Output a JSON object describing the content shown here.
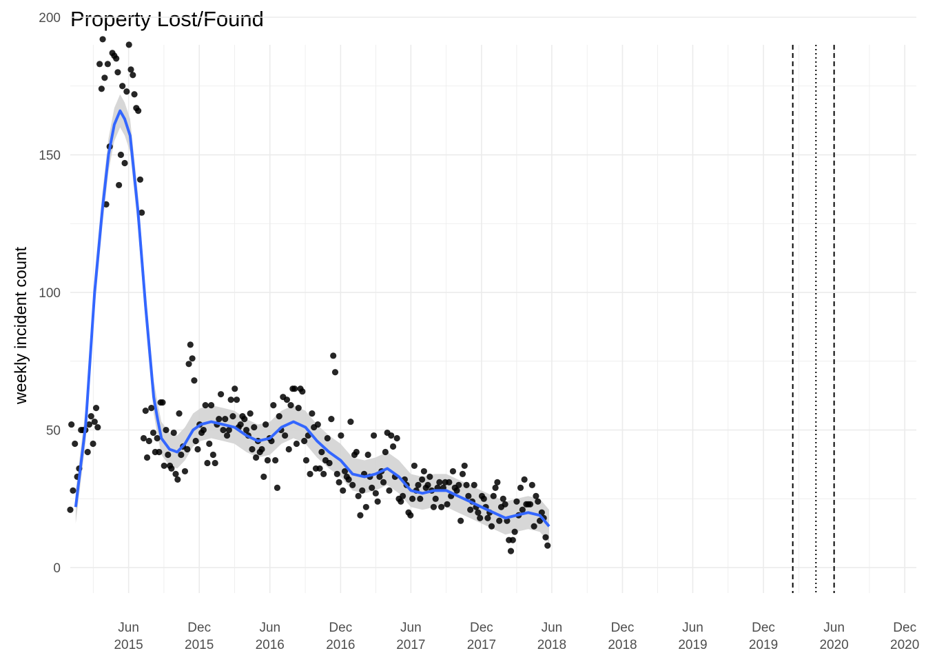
{
  "chart_data": {
    "type": "scatter",
    "title": "Property Lost/Found",
    "xlabel": "",
    "ylabel": "weekly incident count",
    "xlim": [
      "2015-01-01",
      "2020-12-31"
    ],
    "ylim": [
      -8,
      200
    ],
    "y_ticks": [
      0,
      50,
      100,
      150,
      200
    ],
    "x_ticks": [
      {
        "date": "2015-06-01",
        "line1": "Jun",
        "line2": "2015"
      },
      {
        "date": "2015-12-01",
        "line1": "Dec",
        "line2": "2015"
      },
      {
        "date": "2016-06-01",
        "line1": "Jun",
        "line2": "2016"
      },
      {
        "date": "2016-12-01",
        "line1": "Dec",
        "line2": "2016"
      },
      {
        "date": "2017-06-01",
        "line1": "Jun",
        "line2": "2017"
      },
      {
        "date": "2017-12-01",
        "line1": "Dec",
        "line2": "2017"
      },
      {
        "date": "2018-06-01",
        "line1": "Jun",
        "line2": "2018"
      },
      {
        "date": "2018-12-01",
        "line1": "Dec",
        "line2": "2018"
      },
      {
        "date": "2019-06-01",
        "line1": "Jun",
        "line2": "2019"
      },
      {
        "date": "2019-12-01",
        "line1": "Dec",
        "line2": "2019"
      },
      {
        "date": "2020-06-01",
        "line1": "Jun",
        "line2": "2020"
      },
      {
        "date": "2020-12-01",
        "line1": "Dec",
        "line2": "2020"
      }
    ],
    "grid": true,
    "vlines": [
      {
        "date": "2020-02-15",
        "style": "dashed"
      },
      {
        "date": "2020-04-15",
        "style": "dotted"
      },
      {
        "date": "2020-06-01",
        "style": "dashed"
      }
    ],
    "points": [
      [
        "2015-01-01",
        21
      ],
      [
        "2015-01-04",
        52
      ],
      [
        "2015-01-08",
        28
      ],
      [
        "2015-01-13",
        45
      ],
      [
        "2015-01-19",
        33
      ],
      [
        "2015-01-24",
        36
      ],
      [
        "2015-01-29",
        50
      ],
      [
        "2015-02-03",
        50
      ],
      [
        "2015-02-09",
        50
      ],
      [
        "2015-02-15",
        42
      ],
      [
        "2015-02-19",
        52
      ],
      [
        "2015-02-24",
        55
      ],
      [
        "2015-03-01",
        45
      ],
      [
        "2015-03-05",
        53
      ],
      [
        "2015-03-09",
        58
      ],
      [
        "2015-03-13",
        51
      ],
      [
        "2015-03-18",
        183
      ],
      [
        "2015-03-23",
        174
      ],
      [
        "2015-03-26",
        192
      ],
      [
        "2015-03-31",
        178
      ],
      [
        "2015-04-04",
        132
      ],
      [
        "2015-04-08",
        183
      ],
      [
        "2015-04-13",
        153
      ],
      [
        "2015-04-20",
        187
      ],
      [
        "2015-04-25",
        186
      ],
      [
        "2015-04-30",
        185
      ],
      [
        "2015-05-04",
        180
      ],
      [
        "2015-05-07",
        139
      ],
      [
        "2015-05-12",
        150
      ],
      [
        "2015-05-16",
        175
      ],
      [
        "2015-05-22",
        147
      ],
      [
        "2015-05-27",
        173
      ],
      [
        "2015-06-02",
        190
      ],
      [
        "2015-06-07",
        181
      ],
      [
        "2015-06-12",
        179
      ],
      [
        "2015-06-16",
        172
      ],
      [
        "2015-06-21",
        167
      ],
      [
        "2015-06-26",
        166
      ],
      [
        "2015-07-01",
        141
      ],
      [
        "2015-07-05",
        129
      ],
      [
        "2015-07-10",
        47
      ],
      [
        "2015-07-15",
        57
      ],
      [
        "2015-07-19",
        40
      ],
      [
        "2015-07-24",
        46
      ],
      [
        "2015-07-30",
        58
      ],
      [
        "2015-08-04",
        49
      ],
      [
        "2015-08-09",
        42
      ],
      [
        "2015-08-14",
        47
      ],
      [
        "2015-08-19",
        42
      ],
      [
        "2015-08-23",
        60
      ],
      [
        "2015-08-28",
        60
      ],
      [
        "2015-09-01",
        37
      ],
      [
        "2015-09-06",
        50
      ],
      [
        "2015-09-11",
        41
      ],
      [
        "2015-09-16",
        37
      ],
      [
        "2015-09-20",
        36
      ],
      [
        "2015-09-26",
        49
      ],
      [
        "2015-10-01",
        34
      ],
      [
        "2015-10-06",
        32
      ],
      [
        "2015-10-10",
        56
      ],
      [
        "2015-10-15",
        41
      ],
      [
        "2015-10-20",
        44
      ],
      [
        "2015-10-25",
        35
      ],
      [
        "2015-10-31",
        43
      ],
      [
        "2015-11-04",
        74
      ],
      [
        "2015-11-08",
        81
      ],
      [
        "2015-11-13",
        76
      ],
      [
        "2015-11-18",
        68
      ],
      [
        "2015-11-22",
        46
      ],
      [
        "2015-11-27",
        43
      ],
      [
        "2015-12-02",
        52
      ],
      [
        "2015-12-07",
        49
      ],
      [
        "2015-12-12",
        50
      ],
      [
        "2015-12-17",
        59
      ],
      [
        "2015-12-22",
        38
      ],
      [
        "2015-12-27",
        45
      ],
      [
        "2016-01-01",
        59
      ],
      [
        "2016-01-06",
        41
      ],
      [
        "2016-01-11",
        38
      ],
      [
        "2016-01-16",
        52
      ],
      [
        "2016-01-21",
        54
      ],
      [
        "2016-01-26",
        63
      ],
      [
        "2016-02-01",
        50
      ],
      [
        "2016-02-06",
        54
      ],
      [
        "2016-02-11",
        48
      ],
      [
        "2016-02-16",
        50
      ],
      [
        "2016-02-21",
        61
      ],
      [
        "2016-02-26",
        55
      ],
      [
        "2016-03-02",
        65
      ],
      [
        "2016-03-07",
        61
      ],
      [
        "2016-03-12",
        51
      ],
      [
        "2016-03-17",
        52
      ],
      [
        "2016-03-22",
        55
      ],
      [
        "2016-03-27",
        54
      ],
      [
        "2016-04-01",
        50
      ],
      [
        "2016-04-06",
        48
      ],
      [
        "2016-04-11",
        56
      ],
      [
        "2016-04-16",
        43
      ],
      [
        "2016-04-21",
        51
      ],
      [
        "2016-04-26",
        40
      ],
      [
        "2016-05-01",
        46
      ],
      [
        "2016-05-06",
        42
      ],
      [
        "2016-05-11",
        43
      ],
      [
        "2016-05-16",
        33
      ],
      [
        "2016-05-21",
        52
      ],
      [
        "2016-05-26",
        39
      ],
      [
        "2016-05-31",
        47
      ],
      [
        "2016-06-05",
        46
      ],
      [
        "2016-06-10",
        59
      ],
      [
        "2016-06-15",
        39
      ],
      [
        "2016-06-20",
        29
      ],
      [
        "2016-06-25",
        55
      ],
      [
        "2016-06-30",
        50
      ],
      [
        "2016-07-05",
        62
      ],
      [
        "2016-07-10",
        48
      ],
      [
        "2016-07-15",
        61
      ],
      [
        "2016-07-20",
        43
      ],
      [
        "2016-07-25",
        59
      ],
      [
        "2016-07-30",
        65
      ],
      [
        "2016-08-04",
        65
      ],
      [
        "2016-08-09",
        45
      ],
      [
        "2016-08-14",
        58
      ],
      [
        "2016-08-19",
        65
      ],
      [
        "2016-08-24",
        64
      ],
      [
        "2016-08-29",
        46
      ],
      [
        "2016-09-03",
        39
      ],
      [
        "2016-09-08",
        48
      ],
      [
        "2016-09-13",
        34
      ],
      [
        "2016-09-18",
        56
      ],
      [
        "2016-09-23",
        51
      ],
      [
        "2016-09-28",
        36
      ],
      [
        "2016-10-03",
        52
      ],
      [
        "2016-10-08",
        36
      ],
      [
        "2016-10-13",
        42
      ],
      [
        "2016-10-18",
        34
      ],
      [
        "2016-10-23",
        39
      ],
      [
        "2016-10-28",
        47
      ],
      [
        "2016-11-02",
        38
      ],
      [
        "2016-11-07",
        54
      ],
      [
        "2016-11-12",
        77
      ],
      [
        "2016-11-17",
        71
      ],
      [
        "2016-11-22",
        34
      ],
      [
        "2016-11-27",
        31
      ],
      [
        "2016-12-02",
        48
      ],
      [
        "2016-12-07",
        28
      ],
      [
        "2016-12-12",
        35
      ],
      [
        "2016-12-17",
        33
      ],
      [
        "2016-12-22",
        32
      ],
      [
        "2016-12-27",
        53
      ],
      [
        "2017-01-01",
        30
      ],
      [
        "2017-01-06",
        41
      ],
      [
        "2017-01-11",
        42
      ],
      [
        "2017-01-16",
        26
      ],
      [
        "2017-01-21",
        19
      ],
      [
        "2017-01-26",
        28
      ],
      [
        "2017-01-31",
        34
      ],
      [
        "2017-02-05",
        22
      ],
      [
        "2017-02-10",
        41
      ],
      [
        "2017-02-15",
        33
      ],
      [
        "2017-02-20",
        29
      ],
      [
        "2017-02-25",
        48
      ],
      [
        "2017-03-02",
        27
      ],
      [
        "2017-03-07",
        24
      ],
      [
        "2017-03-12",
        33
      ],
      [
        "2017-03-17",
        35
      ],
      [
        "2017-03-22",
        31
      ],
      [
        "2017-03-27",
        42
      ],
      [
        "2017-04-01",
        49
      ],
      [
        "2017-04-06",
        28
      ],
      [
        "2017-04-11",
        48
      ],
      [
        "2017-04-16",
        44
      ],
      [
        "2017-04-21",
        33
      ],
      [
        "2017-04-26",
        47
      ],
      [
        "2017-05-01",
        25
      ],
      [
        "2017-05-06",
        24
      ],
      [
        "2017-05-11",
        26
      ],
      [
        "2017-05-16",
        32
      ],
      [
        "2017-05-21",
        30
      ],
      [
        "2017-05-26",
        20
      ],
      [
        "2017-05-31",
        19
      ],
      [
        "2017-06-05",
        25
      ],
      [
        "2017-06-10",
        37
      ],
      [
        "2017-06-15",
        28
      ],
      [
        "2017-06-20",
        30
      ],
      [
        "2017-06-25",
        25
      ],
      [
        "2017-06-30",
        32
      ],
      [
        "2017-07-05",
        35
      ],
      [
        "2017-07-10",
        29
      ],
      [
        "2017-07-15",
        30
      ],
      [
        "2017-07-20",
        33
      ],
      [
        "2017-07-25",
        28
      ],
      [
        "2017-07-30",
        22
      ],
      [
        "2017-08-04",
        25
      ],
      [
        "2017-08-09",
        29
      ],
      [
        "2017-08-14",
        31
      ],
      [
        "2017-08-19",
        22
      ],
      [
        "2017-08-24",
        29
      ],
      [
        "2017-08-29",
        31
      ],
      [
        "2017-09-03",
        23
      ],
      [
        "2017-09-08",
        31
      ],
      [
        "2017-09-13",
        26
      ],
      [
        "2017-09-18",
        35
      ],
      [
        "2017-09-23",
        29
      ],
      [
        "2017-09-28",
        28
      ],
      [
        "2017-10-03",
        30
      ],
      [
        "2017-10-08",
        17
      ],
      [
        "2017-10-13",
        34
      ],
      [
        "2017-10-18",
        37
      ],
      [
        "2017-10-23",
        30
      ],
      [
        "2017-10-28",
        26
      ],
      [
        "2017-11-02",
        21
      ],
      [
        "2017-11-07",
        24
      ],
      [
        "2017-11-12",
        30
      ],
      [
        "2017-11-17",
        22
      ],
      [
        "2017-11-22",
        20
      ],
      [
        "2017-11-27",
        18
      ],
      [
        "2017-12-02",
        26
      ],
      [
        "2017-12-07",
        25
      ],
      [
        "2017-12-12",
        22
      ],
      [
        "2017-12-17",
        18
      ],
      [
        "2017-12-22",
        20
      ],
      [
        "2017-12-27",
        15
      ],
      [
        "2018-01-01",
        26
      ],
      [
        "2018-01-06",
        29
      ],
      [
        "2018-01-11",
        31
      ],
      [
        "2018-01-16",
        17
      ],
      [
        "2018-01-21",
        22
      ],
      [
        "2018-01-26",
        25
      ],
      [
        "2018-01-31",
        23
      ],
      [
        "2018-02-05",
        17
      ],
      [
        "2018-02-10",
        10
      ],
      [
        "2018-02-15",
        6
      ],
      [
        "2018-02-20",
        10
      ],
      [
        "2018-02-25",
        13
      ],
      [
        "2018-03-02",
        24
      ],
      [
        "2018-03-07",
        19
      ],
      [
        "2018-03-12",
        29
      ],
      [
        "2018-03-17",
        21
      ],
      [
        "2018-03-22",
        32
      ],
      [
        "2018-03-27",
        23
      ],
      [
        "2018-04-01",
        23
      ],
      [
        "2018-04-06",
        23
      ],
      [
        "2018-04-11",
        30
      ],
      [
        "2018-04-16",
        15
      ],
      [
        "2018-04-21",
        26
      ],
      [
        "2018-04-26",
        24
      ],
      [
        "2018-05-01",
        17
      ],
      [
        "2018-05-06",
        20
      ],
      [
        "2018-05-11",
        18
      ],
      [
        "2018-05-16",
        11
      ],
      [
        "2018-05-21",
        8
      ]
    ],
    "smooth": [
      [
        "2015-01-15",
        22
      ],
      [
        "2015-02-10",
        52
      ],
      [
        "2015-03-05",
        100
      ],
      [
        "2015-03-25",
        130
      ],
      [
        "2015-04-10",
        150
      ],
      [
        "2015-04-25",
        161
      ],
      [
        "2015-05-10",
        166
      ],
      [
        "2015-05-22",
        163
      ],
      [
        "2015-06-05",
        157
      ],
      [
        "2015-06-25",
        130
      ],
      [
        "2015-07-15",
        95
      ],
      [
        "2015-08-05",
        62
      ],
      [
        "2015-08-15",
        54
      ],
      [
        "2015-08-25",
        47
      ],
      [
        "2015-09-15",
        43
      ],
      [
        "2015-10-05",
        42
      ],
      [
        "2015-10-25",
        45
      ],
      [
        "2015-11-15",
        50
      ],
      [
        "2015-12-05",
        52
      ],
      [
        "2016-01-01",
        53
      ],
      [
        "2016-02-01",
        52
      ],
      [
        "2016-03-01",
        51
      ],
      [
        "2016-04-01",
        48
      ],
      [
        "2016-05-01",
        46
      ],
      [
        "2016-06-01",
        47
      ],
      [
        "2016-07-01",
        51
      ],
      [
        "2016-08-01",
        53
      ],
      [
        "2016-09-01",
        51
      ],
      [
        "2016-10-01",
        46
      ],
      [
        "2016-11-01",
        42
      ],
      [
        "2016-12-01",
        39
      ],
      [
        "2017-01-01",
        34
      ],
      [
        "2017-02-01",
        33
      ],
      [
        "2017-03-01",
        34
      ],
      [
        "2017-04-01",
        36
      ],
      [
        "2017-05-01",
        33
      ],
      [
        "2017-06-01",
        28
      ],
      [
        "2017-07-01",
        27
      ],
      [
        "2017-08-01",
        28
      ],
      [
        "2017-09-01",
        28
      ],
      [
        "2017-10-01",
        26
      ],
      [
        "2017-11-01",
        24
      ],
      [
        "2017-12-01",
        22
      ],
      [
        "2018-01-01",
        20
      ],
      [
        "2018-02-01",
        18
      ],
      [
        "2018-03-01",
        19
      ],
      [
        "2018-04-01",
        20
      ],
      [
        "2018-05-01",
        19
      ],
      [
        "2018-05-25",
        15
      ]
    ],
    "ribbon_halfwidth": 6,
    "colors": {
      "points": "#000000",
      "smooth": "#3366ff",
      "ribbon": "#d3d3d3",
      "grid": "#ebebeb",
      "vline": "#000000"
    }
  }
}
